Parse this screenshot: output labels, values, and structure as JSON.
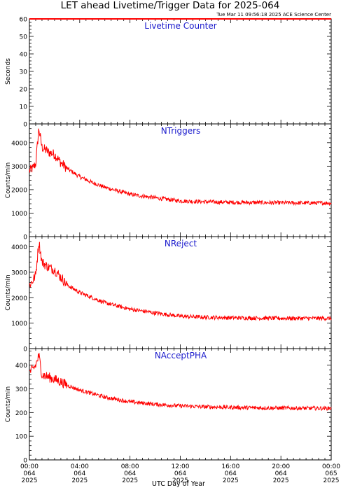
{
  "title": "LET ahead Livetime/Trigger Data for 2025-064",
  "subtitle": "Tue Mar 11 09:56:18 2025 ACE Science Center",
  "xlabel": "UTC Day of Year",
  "colors": {
    "trace": "#ff0000",
    "panel_title": "#1a1acc",
    "axis": "#000000"
  },
  "x_ticks": [
    {
      "hours": 0,
      "lines": [
        "00:00",
        "064",
        "2025"
      ]
    },
    {
      "hours": 4,
      "lines": [
        "04:00",
        "064",
        "2025"
      ]
    },
    {
      "hours": 8,
      "lines": [
        "08:00",
        "064",
        "2025"
      ]
    },
    {
      "hours": 12,
      "lines": [
        "12:00",
        "064",
        "2025"
      ]
    },
    {
      "hours": 16,
      "lines": [
        "16:00",
        "064",
        "2025"
      ]
    },
    {
      "hours": 20,
      "lines": [
        "20:00",
        "064",
        "2025"
      ]
    },
    {
      "hours": 24,
      "lines": [
        "00:00",
        "065",
        "2025"
      ]
    }
  ],
  "chart_data": [
    {
      "type": "line",
      "title": "Livetime Counter",
      "ylabel": "Seconds",
      "ylim": [
        0,
        60
      ],
      "yticks": [
        0,
        10,
        20,
        30,
        40,
        50,
        60
      ],
      "x": [
        0,
        24
      ],
      "values": [
        60,
        60
      ]
    },
    {
      "type": "line",
      "title": "NTriggers",
      "ylabel": "Counts/min",
      "ylim": [
        0,
        4800
      ],
      "yticks": [
        0,
        1000,
        2000,
        3000,
        4000
      ],
      "x": [
        0,
        0.25,
        0.5,
        0.75,
        1,
        1.5,
        2,
        2.5,
        3,
        4,
        5,
        6,
        8,
        10,
        12,
        14,
        16,
        18,
        20,
        22,
        24
      ],
      "values": [
        2800,
        2900,
        3100,
        4600,
        3800,
        3600,
        3500,
        3150,
        2900,
        2550,
        2300,
        2100,
        1800,
        1650,
        1520,
        1480,
        1460,
        1450,
        1440,
        1430,
        1430
      ]
    },
    {
      "type": "line",
      "title": "NReject",
      "ylabel": "Counts/min",
      "ylim": [
        0,
        4400
      ],
      "yticks": [
        0,
        1000,
        2000,
        3000,
        4000
      ],
      "x": [
        0,
        0.25,
        0.5,
        0.75,
        1,
        1.5,
        2,
        2.5,
        3,
        4,
        5,
        6,
        8,
        10,
        12,
        14,
        16,
        18,
        20,
        22,
        24
      ],
      "values": [
        2500,
        2650,
        2900,
        4200,
        3400,
        3200,
        3100,
        2800,
        2500,
        2200,
        2000,
        1800,
        1550,
        1400,
        1270,
        1230,
        1210,
        1200,
        1190,
        1190,
        1190
      ]
    },
    {
      "type": "line",
      "title": "NAcceptPHA",
      "ylabel": "Counts/min",
      "ylim": [
        0,
        470
      ],
      "yticks": [
        0,
        100,
        200,
        300,
        400
      ],
      "x": [
        0,
        0.25,
        0.5,
        0.75,
        1,
        1.5,
        2,
        2.5,
        3,
        4,
        5,
        6,
        8,
        10,
        12,
        14,
        16,
        18,
        20,
        22,
        24
      ],
      "values": [
        370,
        380,
        400,
        440,
        360,
        350,
        340,
        330,
        315,
        295,
        280,
        265,
        245,
        235,
        228,
        224,
        222,
        220,
        219,
        218,
        218
      ]
    }
  ]
}
